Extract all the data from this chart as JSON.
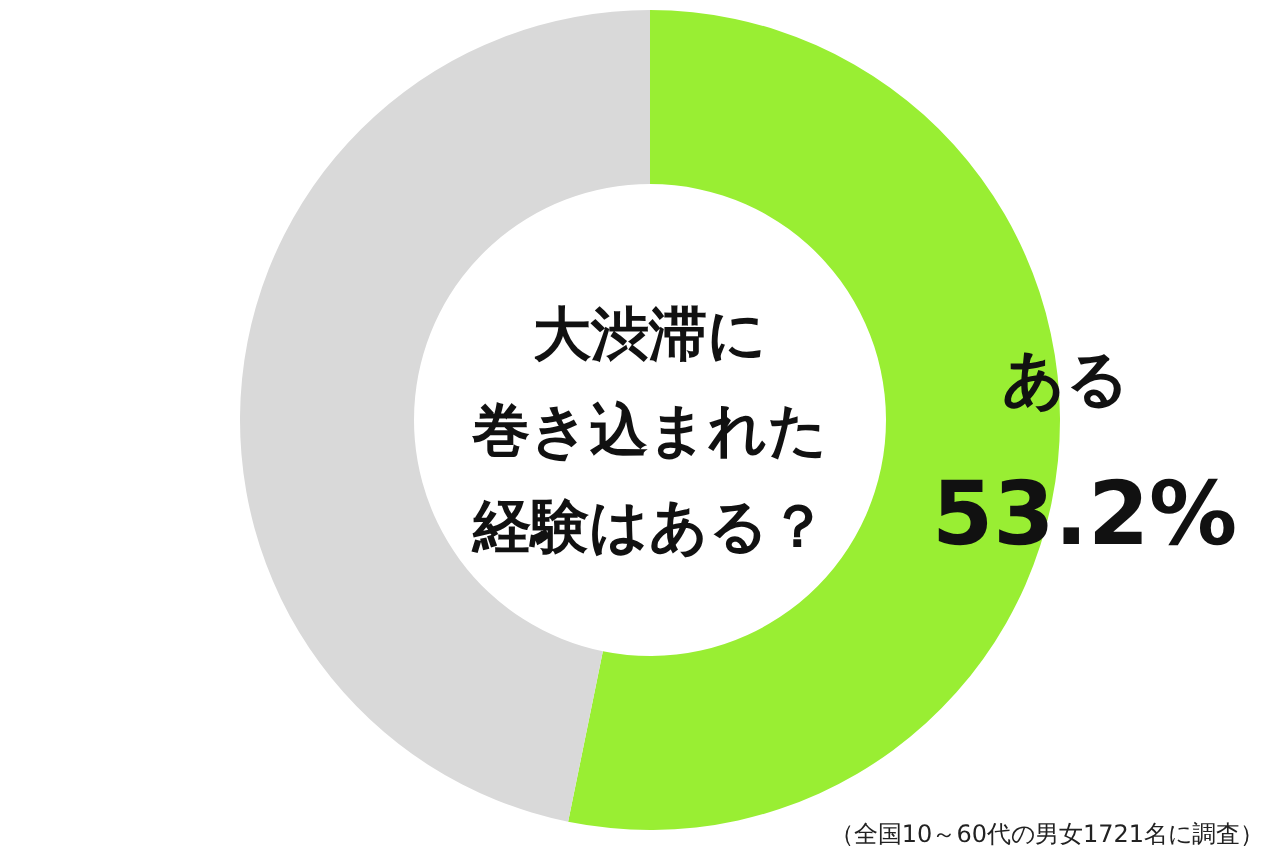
{
  "chart_data": {
    "type": "donut",
    "title": "大渋滞に巻き込まれた経験はある？",
    "categories": [
      "ある",
      null
    ],
    "values": [
      53.2,
      46.8
    ],
    "colors": [
      "#99ee33",
      "#d9d9d9"
    ],
    "value_labels": [
      "53.2%",
      null
    ],
    "annotations": [
      "（全国10～60代の男女1721名に調査）"
    ]
  }
}
